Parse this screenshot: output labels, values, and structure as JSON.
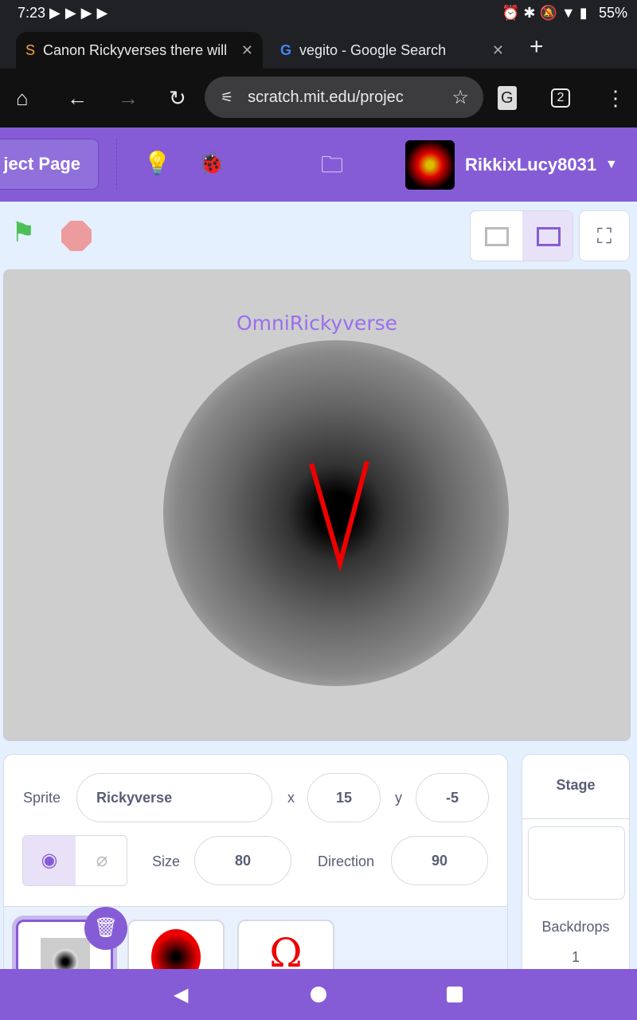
{
  "status": {
    "time": "7:23",
    "battery": "55%",
    "notification_icons": [
      "youtube-icon",
      "youtube-icon",
      "youtube-icon",
      "youtube-icon"
    ]
  },
  "tabs": [
    {
      "title": "Canon Rickyverses there will",
      "icon": "scratch-icon"
    },
    {
      "title": "vegito - Google Search",
      "icon": "google-icon"
    }
  ],
  "toolbar": {
    "url": "scratch.mit.edu/projec",
    "tab_count": "2"
  },
  "menubar": {
    "project_page": "ject Page",
    "username": "RikkixLucy8031"
  },
  "stage": {
    "title_text": "OmniRickyverse"
  },
  "sprite_info": {
    "sprite_label": "Sprite",
    "sprite_name": "Rickyverse",
    "x_label": "x",
    "x": "15",
    "y_label": "y",
    "y": "-5",
    "size_label": "Size",
    "size": "80",
    "direction_label": "Direction",
    "direction": "90"
  },
  "stage_panel": {
    "title": "Stage",
    "backdrops_label": "Backdrops",
    "backdrops_count": "1"
  },
  "colors": {
    "accent": "#855cd6",
    "flag": "#4cbf56",
    "stop": "#ec9c9c"
  }
}
